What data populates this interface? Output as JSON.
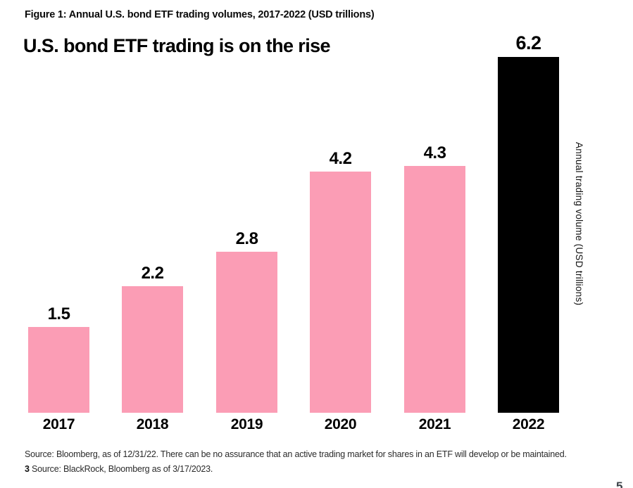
{
  "figure": {
    "caption": "Figure 1: Annual U.S. bond ETF trading volumes, 2017-2022 (USD trillions)",
    "title": "U.S. bond ETF trading is on the rise"
  },
  "chart_data": {
    "type": "bar",
    "title": "U.S. bond ETF trading is on the rise",
    "categories": [
      "2017",
      "2018",
      "2019",
      "2020",
      "2021",
      "2022"
    ],
    "values": [
      1.5,
      2.2,
      2.8,
      4.2,
      4.3,
      6.2
    ],
    "value_labels": [
      "1.5",
      "2.2",
      "2.8",
      "4.2",
      "4.3",
      "6.2"
    ],
    "bar_colors": [
      "#FB9DB5",
      "#FB9DB5",
      "#FB9DB5",
      "#FB9DB5",
      "#FB9DB5",
      "#000000"
    ],
    "xlabel": "",
    "ylabel": "Annual trading volume (USD trillions)",
    "ylim": [
      0,
      6.2
    ],
    "grid": false,
    "legend": "none",
    "accent_pink": "#FB9DB5",
    "accent_black": "#000000"
  },
  "footer": {
    "source_line1": "Source: Bloomberg, as of 12/31/22. There can be no assurance that an active trading market for shares in an ETF will develop or be maintained.",
    "footnote_marker": "3",
    "source_line2": "Source: BlackRock, Bloomberg as of 3/17/2023.",
    "page_number": "5"
  }
}
